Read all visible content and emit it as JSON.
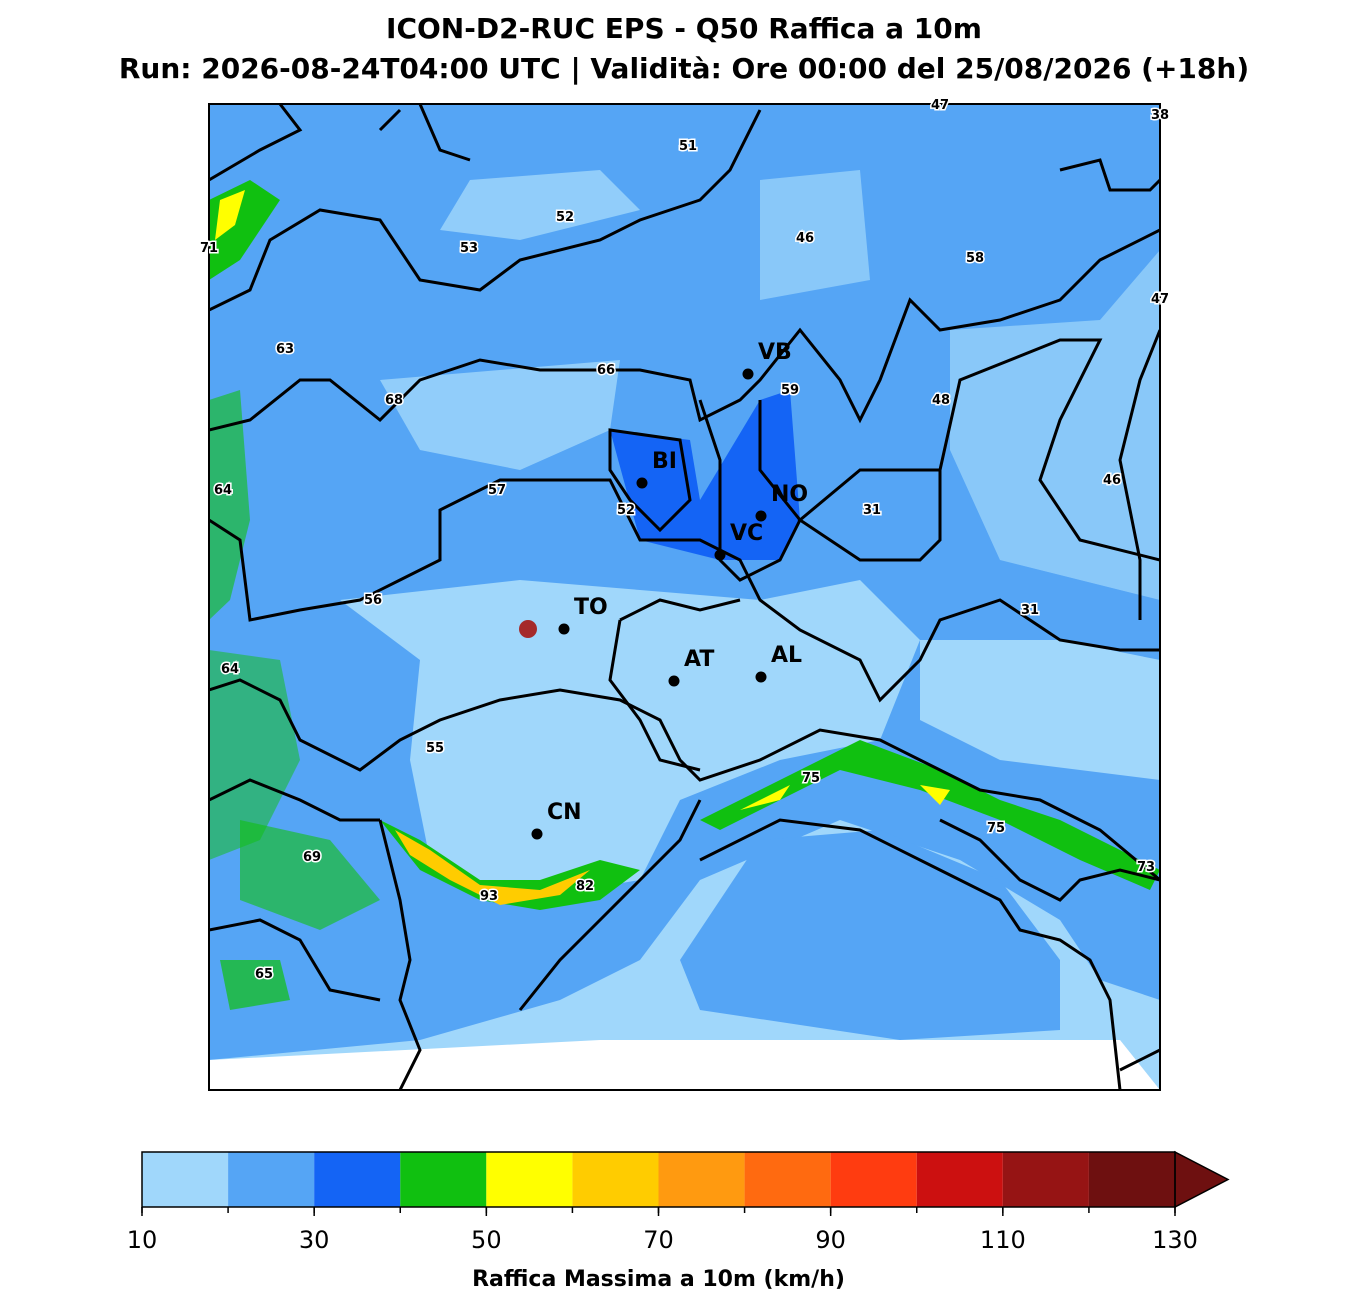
{
  "header": {
    "title": "ICON-D2-RUC EPS - Q50 Raffica a 10m",
    "subtitle": "Run: 2026-08-24T04:00 UTC | Validità: Ore 00:00 del 25/08/2026 (+18h)"
  },
  "cities": [
    "VB",
    "BI",
    "NO",
    "VC",
    "TO",
    "AT",
    "AL",
    "CN"
  ],
  "value_labels": [
    47,
    38,
    51,
    52,
    53,
    46,
    71,
    58,
    47,
    63,
    66,
    59,
    68,
    48,
    64,
    57,
    52,
    31,
    46,
    56,
    31,
    64,
    55,
    75,
    75,
    69,
    73,
    82,
    93,
    65
  ],
  "colorbar": {
    "levels": [
      10,
      20,
      30,
      40,
      50,
      60,
      70,
      80,
      90,
      100,
      110,
      120,
      130
    ],
    "colors": [
      "#a0d7fb",
      "#55a5f5",
      "#1464f5",
      "#10c010",
      "#ffff00",
      "#ffcc00",
      "#ff9a10",
      "#ff6a10",
      "#ff3c10",
      "#cc1010",
      "#961414",
      "#6e1010"
    ],
    "ticks": [
      10,
      30,
      50,
      70,
      90,
      110,
      130
    ],
    "label": "Raffica Massima a 10m (km/h)",
    "extend": "max"
  }
}
